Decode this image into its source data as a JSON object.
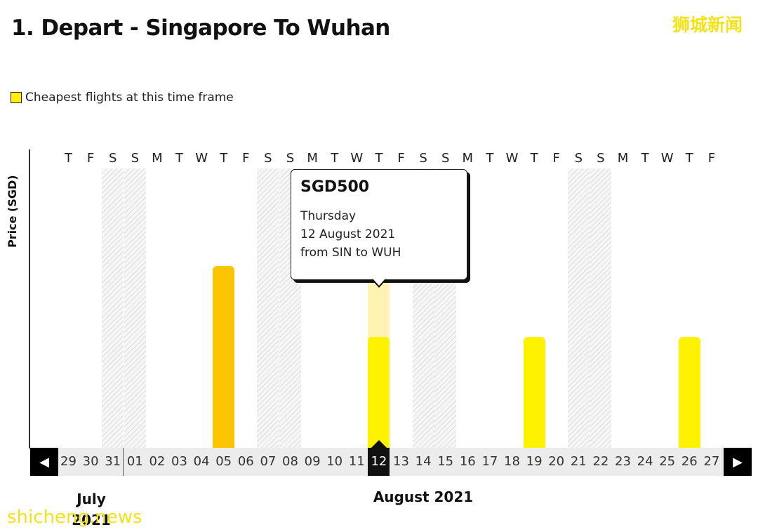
{
  "header": {
    "title": "1. Depart - Singapore To Wuhan"
  },
  "watermark": {
    "top_right": "狮城新闻",
    "bottom_left": "shicheng.news"
  },
  "legend": {
    "label": "Cheapest flights at this time frame",
    "swatch_color": "#fff200"
  },
  "chart": {
    "ylabel": "Price (SGD)"
  },
  "weekdays": [
    "T",
    "F",
    "S",
    "S",
    "M",
    "T",
    "W",
    "T",
    "F",
    "S",
    "S",
    "M",
    "T",
    "W",
    "T",
    "F",
    "S",
    "S",
    "M",
    "T",
    "W",
    "T",
    "F",
    "S",
    "S",
    "M",
    "T",
    "W",
    "T",
    "F"
  ],
  "dates": [
    "29",
    "30",
    "31",
    "01",
    "02",
    "03",
    "04",
    "05",
    "06",
    "07",
    "08",
    "09",
    "10",
    "11",
    "12",
    "13",
    "14",
    "15",
    "16",
    "17",
    "18",
    "19",
    "20",
    "21",
    "22",
    "23",
    "24",
    "25",
    "26",
    "27"
  ],
  "months": {
    "first": "July 2021",
    "second": "August 2021"
  },
  "tooltip": {
    "price": "SGD500",
    "day": "Thursday",
    "date": "12 August 2021",
    "route": "from SIN to WUH"
  },
  "nav": {
    "prev_icon": "arrow-left-icon",
    "next_icon": "arrow-right-icon"
  },
  "colors": {
    "cheapest": "#fff200",
    "other": "#fcc500",
    "selected_bg": "#111111",
    "selected_highlight": "#fff3b3"
  },
  "chart_data": {
    "type": "bar",
    "ylabel": "Price (SGD)",
    "x": [
      "29",
      "30",
      "31",
      "01",
      "02",
      "03",
      "04",
      "05",
      "06",
      "07",
      "08",
      "09",
      "10",
      "11",
      "12",
      "13",
      "14",
      "15",
      "16",
      "17",
      "18",
      "19",
      "20",
      "21",
      "22",
      "23",
      "24",
      "25",
      "26",
      "27"
    ],
    "bars": [
      {
        "date": "05",
        "month": "August 2021",
        "value": 820,
        "cheapest": false
      },
      {
        "date": "12",
        "month": "August 2021",
        "value": 500,
        "cheapest": true,
        "selected": true
      },
      {
        "date": "19",
        "month": "August 2021",
        "value": 500,
        "cheapest": true
      },
      {
        "date": "26",
        "month": "August 2021",
        "value": 500,
        "cheapest": true
      }
    ],
    "ylim": [
      0,
      1260
    ],
    "selected_date": "12",
    "grid": false,
    "legend": "top-left"
  }
}
